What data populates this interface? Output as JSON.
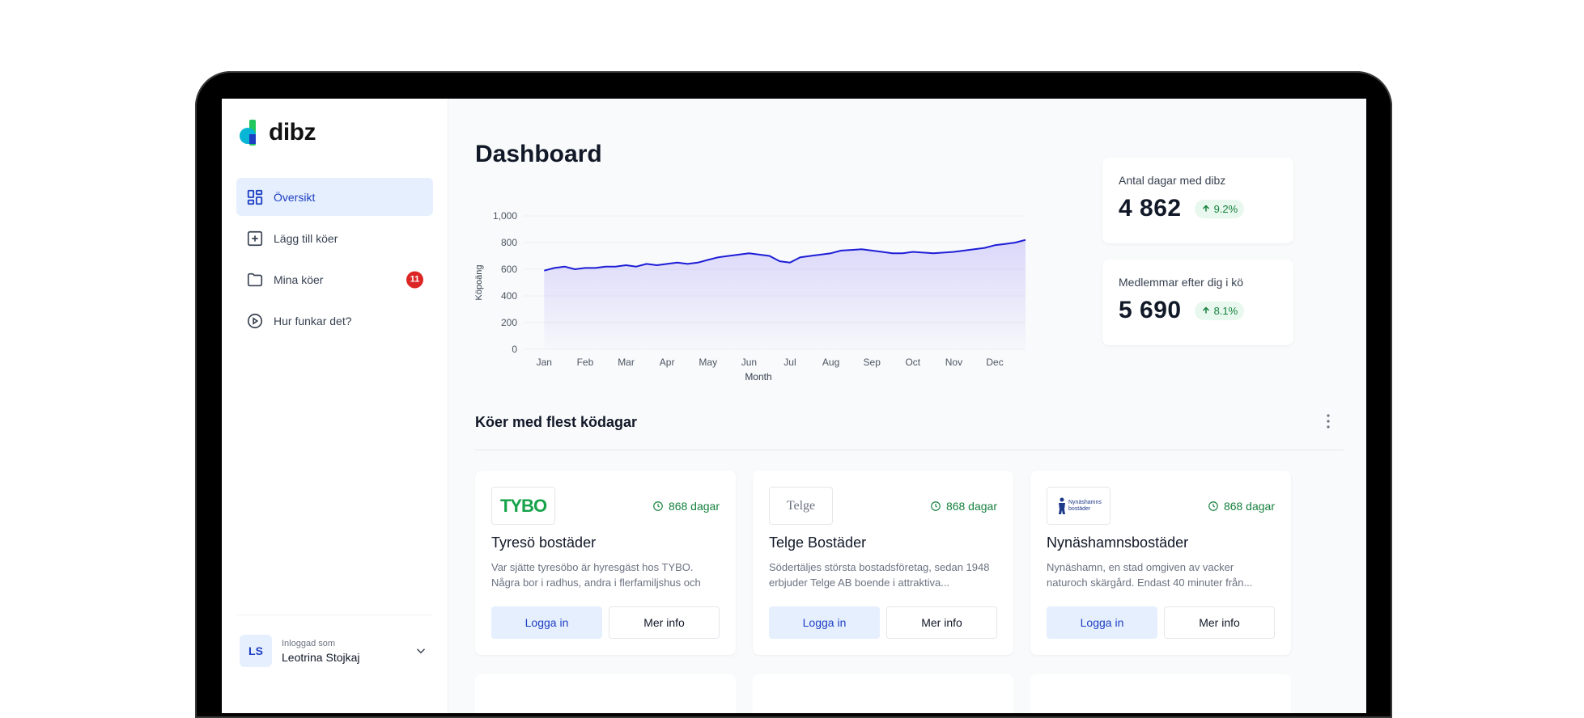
{
  "app": {
    "brand_name": "dibz",
    "accent": "#1d3fc4"
  },
  "sidebar": {
    "items": [
      {
        "label": "Översikt",
        "icon": "grid-icon",
        "active": true
      },
      {
        "label": "Lägg till köer",
        "icon": "plus-square-icon"
      },
      {
        "label": "Mina köer",
        "icon": "folder-icon",
        "badge": "11"
      },
      {
        "label": "Hur funkar det?",
        "icon": "play-circle-icon"
      }
    ],
    "user": {
      "initials": "LS",
      "caption": "Inloggad som",
      "name": "Leotrina Stojkaj"
    }
  },
  "main": {
    "title": "Dashboard",
    "stats": [
      {
        "label": "Antal dagar med dibz",
        "value": "4 862",
        "change": "9.2%"
      },
      {
        "label": "Medlemmar efter dig i kö",
        "value": "5 690",
        "change": "8.1%"
      }
    ],
    "section_title": "Köer med flest ködagar",
    "queues": [
      {
        "logo_text": "TYBO",
        "days": "868 dagar",
        "name": "Tyresö bostäder",
        "description": "Var sjätte tyresöbo är hyresgäst hos TYBO. Några bor i radhus, andra i flerfamiljshus och",
        "login_label": "Logga in",
        "info_label": "Mer info"
      },
      {
        "logo_text": "Telge",
        "days": "868 dagar",
        "name": "Telge Bostäder",
        "description": "Södertäljes största bostadsföretag, sedan 1948 erbjuder Telge AB boende i attraktiva...",
        "login_label": "Logga in",
        "info_label": "Mer info"
      },
      {
        "logo_text": "Nynäshamns bostäder",
        "days": "868 dagar",
        "name": "Nynäshamnsbostäder",
        "description": "Nynäshamn, en stad omgiven av vacker naturoch skärgård. Endast 40 minuter från...",
        "login_label": "Logga in",
        "info_label": "Mer info"
      }
    ]
  },
  "chart_data": {
    "type": "area",
    "xlabel": "Month",
    "ylabel": "Köpoäng",
    "ylim": [
      0,
      1000
    ],
    "yticks": [
      "0",
      "200",
      "400",
      "600",
      "800",
      "1,000"
    ],
    "categories": [
      "Jan",
      "Feb",
      "Mar",
      "Apr",
      "May",
      "Jun",
      "Jul",
      "Aug",
      "Sep",
      "Oct",
      "Nov",
      "Dec"
    ],
    "x": [
      0,
      0.25,
      0.5,
      0.75,
      1,
      1.25,
      1.5,
      1.75,
      2,
      2.25,
      2.5,
      2.75,
      3,
      3.25,
      3.5,
      3.75,
      4,
      4.25,
      4.5,
      4.75,
      5,
      5.25,
      5.5,
      5.75,
      6,
      6.25,
      6.5,
      6.75,
      7,
      7.25,
      7.5,
      7.75,
      8,
      8.25,
      8.5,
      8.75,
      9,
      9.25,
      9.5,
      9.75,
      10,
      10.25,
      10.5,
      10.75,
      11,
      11.25,
      11.5,
      11.75
    ],
    "values": [
      590,
      610,
      620,
      600,
      610,
      610,
      620,
      620,
      630,
      620,
      640,
      630,
      640,
      650,
      640,
      650,
      670,
      690,
      700,
      710,
      720,
      710,
      700,
      660,
      650,
      690,
      700,
      710,
      720,
      740,
      745,
      750,
      740,
      730,
      720,
      720,
      730,
      725,
      720,
      725,
      730,
      740,
      750,
      760,
      780,
      790,
      800,
      820
    ],
    "series_color": "#1d1dd6"
  }
}
